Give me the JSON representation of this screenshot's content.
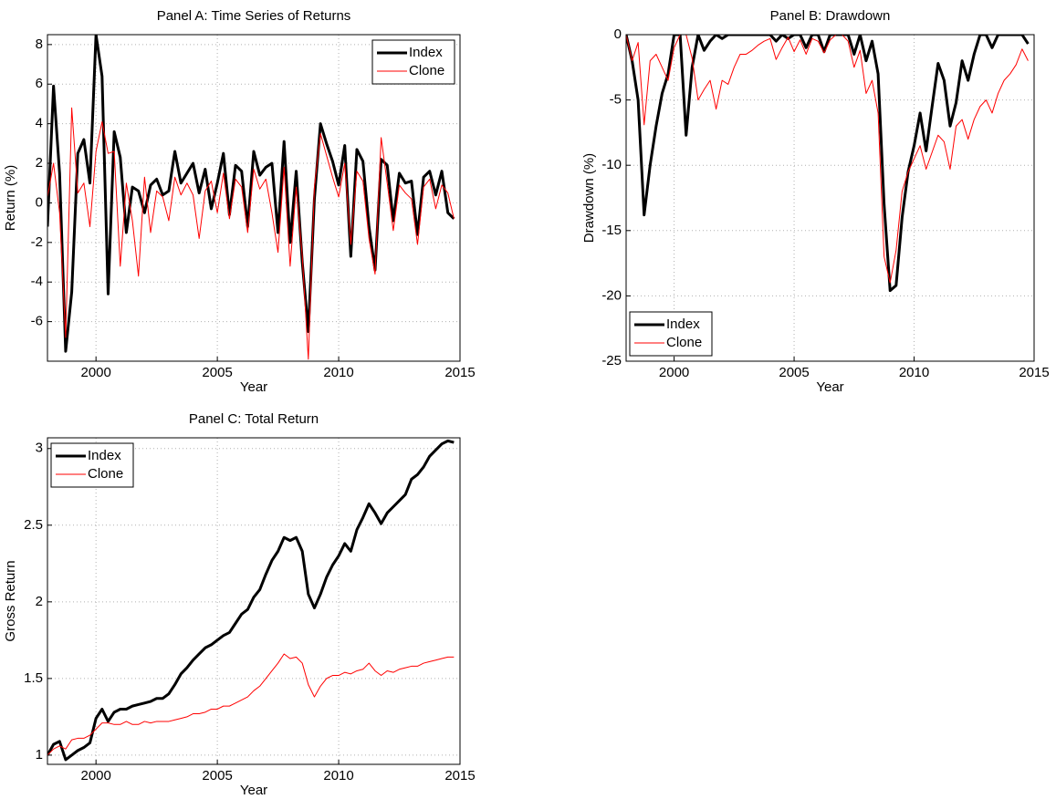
{
  "chart_data": [
    {
      "type": "line",
      "title": "Panel A: Time Series of Returns",
      "xlabel": "Year",
      "ylabel": "Return (%)",
      "x": [
        1998,
        1998.25,
        1998.5,
        1998.75,
        1999,
        1999.25,
        1999.5,
        1999.75,
        2000,
        2000.25,
        2000.5,
        2000.75,
        2001,
        2001.25,
        2001.5,
        2001.75,
        2002,
        2002.25,
        2002.5,
        2002.75,
        2003,
        2003.25,
        2003.5,
        2003.75,
        2004,
        2004.25,
        2004.5,
        2004.75,
        2005,
        2005.25,
        2005.5,
        2005.75,
        2006,
        2006.25,
        2006.5,
        2006.75,
        2007,
        2007.25,
        2007.5,
        2007.75,
        2008,
        2008.25,
        2008.5,
        2008.75,
        2009,
        2009.25,
        2009.5,
        2009.75,
        2010,
        2010.25,
        2010.5,
        2010.75,
        2011,
        2011.25,
        2011.5,
        2011.75,
        2012,
        2012.25,
        2012.5,
        2012.75,
        2013,
        2013.25,
        2013.5,
        2013.75,
        2014,
        2014.25,
        2014.5,
        2014.75
      ],
      "series": [
        {
          "name": "Index",
          "color": "#000000",
          "linewidth": 3,
          "values": [
            -1.2,
            5.9,
            1.5,
            -7.5,
            -4.5,
            2.5,
            3.2,
            1.0,
            8.5,
            6.4,
            -4.6,
            3.6,
            2.3,
            -1.5,
            0.8,
            0.6,
            -0.5,
            0.9,
            1.2,
            0.4,
            0.6,
            2.6,
            1.0,
            1.5,
            2.0,
            0.5,
            1.7,
            -0.3,
            1.0,
            2.5,
            -0.6,
            1.9,
            1.6,
            -1.2,
            2.6,
            1.4,
            1.8,
            2.0,
            -1.5,
            3.1,
            -2.0,
            1.6,
            -3.0,
            -6.5,
            0.2,
            4.0,
            3.0,
            2.1,
            0.9,
            2.9,
            -2.7,
            2.7,
            2.1,
            -1.2,
            -3.4,
            2.2,
            1.9,
            -0.9,
            1.5,
            1.0,
            1.1,
            -1.6,
            1.3,
            1.6,
            0.4,
            1.6,
            -0.5,
            -0.8
          ]
        },
        {
          "name": "Clone",
          "color": "#ff0000",
          "linewidth": 1,
          "values": [
            0.3,
            2.0,
            -0.5,
            -6.8,
            4.8,
            0.5,
            1.0,
            -1.2,
            2.6,
            4.1,
            2.5,
            2.6,
            -3.2,
            1.0,
            -0.9,
            -3.7,
            1.3,
            -1.5,
            0.6,
            0.3,
            -0.9,
            1.3,
            0.4,
            1.0,
            0.4,
            -1.8,
            0.6,
            1.1,
            -0.5,
            1.5,
            -0.8,
            1.2,
            0.8,
            -1.5,
            1.7,
            0.7,
            1.2,
            -0.5,
            -2.5,
            1.8,
            -3.2,
            0.8,
            -2.7,
            -7.9,
            0.8,
            3.5,
            2.4,
            1.3,
            0.3,
            2.0,
            -2.1,
            1.6,
            1.1,
            -1.8,
            -3.6,
            3.3,
            1.0,
            -1.4,
            0.9,
            0.5,
            0.2,
            -2.1,
            0.8,
            1.2,
            -0.3,
            0.9,
            0.5,
            -0.8
          ]
        }
      ],
      "xlim": [
        1998,
        2015
      ],
      "xticks": [
        2000,
        2005,
        2010,
        2015
      ],
      "ylim": [
        -8,
        8.5
      ],
      "yticks": [
        -6,
        -4,
        -2,
        0,
        2,
        4,
        6,
        8
      ],
      "grid": true,
      "legend": "upper-right"
    },
    {
      "type": "line",
      "title": "Panel B: Drawdown",
      "xlabel": "Year",
      "ylabel": "Drawdown (%)",
      "x": [
        1998,
        1998.25,
        1998.5,
        1998.75,
        1999,
        1999.25,
        1999.5,
        1999.75,
        2000,
        2000.25,
        2000.5,
        2000.75,
        2001,
        2001.25,
        2001.5,
        2001.75,
        2002,
        2002.25,
        2002.5,
        2002.75,
        2003,
        2003.25,
        2003.5,
        2003.75,
        2004,
        2004.25,
        2004.5,
        2004.75,
        2005,
        2005.25,
        2005.5,
        2005.75,
        2006,
        2006.25,
        2006.5,
        2006.75,
        2007,
        2007.25,
        2007.5,
        2007.75,
        2008,
        2008.25,
        2008.5,
        2008.75,
        2009,
        2009.25,
        2009.5,
        2009.75,
        2010,
        2010.25,
        2010.5,
        2010.75,
        2011,
        2011.25,
        2011.5,
        2011.75,
        2012,
        2012.25,
        2012.5,
        2012.75,
        2013,
        2013.25,
        2013.5,
        2013.75,
        2014,
        2014.25,
        2014.5,
        2014.75
      ],
      "series": [
        {
          "name": "Index",
          "color": "#000000",
          "linewidth": 3,
          "values": [
            0,
            -2,
            -5,
            -13.8,
            -10,
            -7,
            -4.5,
            -3,
            0,
            0,
            -7.7,
            -2.5,
            0,
            -1.2,
            -0.5,
            0,
            -0.3,
            0,
            0,
            0,
            0,
            0,
            0,
            0,
            0,
            -0.5,
            0,
            -0.3,
            0,
            0,
            -1,
            0,
            0,
            -1.3,
            0,
            0,
            0,
            0,
            -1.5,
            0,
            -2,
            -0.5,
            -3,
            -13,
            -19.6,
            -19.2,
            -14,
            -10.5,
            -8.5,
            -6,
            -8.9,
            -5.5,
            -2.2,
            -3.5,
            -7,
            -5.2,
            -2,
            -3.5,
            -1.5,
            0,
            0,
            -1,
            0,
            0,
            0,
            0,
            0,
            -0.7
          ]
        },
        {
          "name": "Clone",
          "color": "#ff0000",
          "linewidth": 1,
          "values": [
            0,
            -2,
            -0.6,
            -6.9,
            -2,
            -1.5,
            -2.5,
            -3.5,
            -1,
            0,
            0,
            -1.8,
            -5,
            -4.2,
            -3.5,
            -5.7,
            -3.5,
            -3.8,
            -2.5,
            -1.5,
            -1.5,
            -1.2,
            -0.8,
            -0.5,
            -0.3,
            -1.9,
            -1,
            -0.2,
            -1.3,
            -0.4,
            -1.5,
            -0.3,
            -0.5,
            -1.4,
            -0.4,
            0,
            0,
            -0.5,
            -2.5,
            -1.2,
            -4.5,
            -3.5,
            -6,
            -17,
            -19,
            -16.5,
            -12,
            -10.5,
            -9.5,
            -8.5,
            -10.3,
            -9,
            -7.7,
            -8.2,
            -10.3,
            -7,
            -6.5,
            -8,
            -6.5,
            -5.5,
            -5,
            -6,
            -4.5,
            -3.5,
            -3,
            -2.3,
            -1.1,
            -2.0
          ]
        }
      ],
      "xlim": [
        1998,
        2015
      ],
      "xticks": [
        2000,
        2005,
        2010,
        2015
      ],
      "ylim": [
        -25,
        0
      ],
      "yticks": [
        -25,
        -20,
        -15,
        -10,
        -5,
        0
      ],
      "grid": true,
      "legend": "lower-left"
    },
    {
      "type": "line",
      "title": "Panel C: Total Return",
      "xlabel": "Year",
      "ylabel": "Gross Return",
      "x": [
        1998,
        1998.25,
        1998.5,
        1998.75,
        1999,
        1999.25,
        1999.5,
        1999.75,
        2000,
        2000.25,
        2000.5,
        2000.75,
        2001,
        2001.25,
        2001.5,
        2001.75,
        2002,
        2002.25,
        2002.5,
        2002.75,
        2003,
        2003.25,
        2003.5,
        2003.75,
        2004,
        2004.25,
        2004.5,
        2004.75,
        2005,
        2005.25,
        2005.5,
        2005.75,
        2006,
        2006.25,
        2006.5,
        2006.75,
        2007,
        2007.25,
        2007.5,
        2007.75,
        2008,
        2008.25,
        2008.5,
        2008.75,
        2009,
        2009.25,
        2009.5,
        2009.75,
        2010,
        2010.25,
        2010.5,
        2010.75,
        2011,
        2011.25,
        2011.5,
        2011.75,
        2012,
        2012.25,
        2012.5,
        2012.75,
        2013,
        2013.25,
        2013.5,
        2013.75,
        2014,
        2014.25,
        2014.5,
        2014.75
      ],
      "series": [
        {
          "name": "Index",
          "color": "#000000",
          "linewidth": 3,
          "values": [
            1.0,
            1.07,
            1.09,
            0.97,
            1.0,
            1.03,
            1.05,
            1.08,
            1.24,
            1.3,
            1.22,
            1.28,
            1.3,
            1.3,
            1.32,
            1.33,
            1.34,
            1.35,
            1.37,
            1.37,
            1.4,
            1.46,
            1.53,
            1.57,
            1.62,
            1.66,
            1.7,
            1.72,
            1.75,
            1.78,
            1.8,
            1.86,
            1.92,
            1.95,
            2.03,
            2.08,
            2.18,
            2.27,
            2.33,
            2.42,
            2.4,
            2.42,
            2.33,
            2.05,
            1.96,
            2.05,
            2.16,
            2.24,
            2.3,
            2.38,
            2.33,
            2.47,
            2.55,
            2.64,
            2.58,
            2.51,
            2.58,
            2.62,
            2.66,
            2.7,
            2.8,
            2.83,
            2.88,
            2.95,
            2.99,
            3.03,
            3.05,
            3.04
          ]
        },
        {
          "name": "Clone",
          "color": "#ff0000",
          "linewidth": 1,
          "values": [
            1.0,
            1.04,
            1.06,
            1.04,
            1.1,
            1.11,
            1.11,
            1.13,
            1.17,
            1.21,
            1.21,
            1.2,
            1.2,
            1.22,
            1.2,
            1.2,
            1.22,
            1.21,
            1.22,
            1.22,
            1.22,
            1.23,
            1.24,
            1.25,
            1.27,
            1.27,
            1.28,
            1.3,
            1.3,
            1.32,
            1.32,
            1.34,
            1.36,
            1.38,
            1.42,
            1.45,
            1.5,
            1.55,
            1.6,
            1.66,
            1.63,
            1.64,
            1.6,
            1.46,
            1.38,
            1.45,
            1.5,
            1.52,
            1.52,
            1.54,
            1.53,
            1.55,
            1.56,
            1.6,
            1.55,
            1.52,
            1.55,
            1.54,
            1.56,
            1.57,
            1.58,
            1.58,
            1.6,
            1.61,
            1.62,
            1.63,
            1.64,
            1.64
          ]
        }
      ],
      "xlim": [
        1998,
        2015
      ],
      "xticks": [
        2000,
        2005,
        2010,
        2015
      ],
      "ylim": [
        0.94,
        3.07
      ],
      "yticks": [
        1,
        1.5,
        2,
        2.5,
        3
      ],
      "grid": true,
      "legend": "upper-left"
    }
  ]
}
